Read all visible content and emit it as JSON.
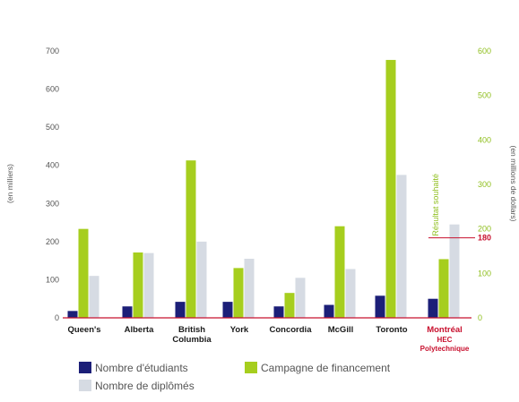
{
  "chart_data": {
    "type": "bar",
    "categories": [
      "Queen's",
      "Alberta",
      "British Columbia",
      "York",
      "Concordia",
      "McGill",
      "Toronto",
      "Montréal HEC Polytechnique"
    ],
    "category_lines": [
      [
        "Queen's"
      ],
      [
        "Alberta"
      ],
      [
        "British",
        "Columbia"
      ],
      [
        "York"
      ],
      [
        "Concordia"
      ],
      [
        "McGill"
      ],
      [
        "Toronto"
      ],
      [
        "Montréal",
        "HEC",
        "Polytechnique"
      ]
    ],
    "highlight_category": "Montréal HEC Polytechnique",
    "series": [
      {
        "name": "Nombre d'étudiants",
        "axis": "left",
        "color": "#1c1f78",
        "values": [
          18,
          30,
          42,
          42,
          30,
          34,
          58,
          50
        ]
      },
      {
        "name": "Campagne de financement",
        "axis": "right",
        "color": "#a6ce1e",
        "values": [
          200,
          147,
          354,
          112,
          56,
          206,
          580,
          132
        ]
      },
      {
        "name": "Nombre de diplômés",
        "axis": "left",
        "color": "#d6dbe3",
        "values": [
          110,
          170,
          200,
          155,
          105,
          128,
          375,
          245
        ]
      }
    ],
    "y_left": {
      "label": "(en milliers)",
      "ylim": [
        0,
        700
      ],
      "ticks": [
        0,
        100,
        200,
        300,
        400,
        500,
        600,
        700
      ]
    },
    "y_right": {
      "label": "(en millions de dollars)",
      "ylim": [
        0,
        600
      ],
      "ticks": [
        0,
        100,
        200,
        300,
        400,
        500,
        600
      ]
    },
    "annotation": {
      "text": "Résultat souhaité",
      "value": 180,
      "value_label": "180",
      "axis": "right"
    },
    "legend_position": "bottom",
    "grid": false,
    "colors": {
      "accent": "#c8102e",
      "axis": "#c8102e"
    }
  }
}
